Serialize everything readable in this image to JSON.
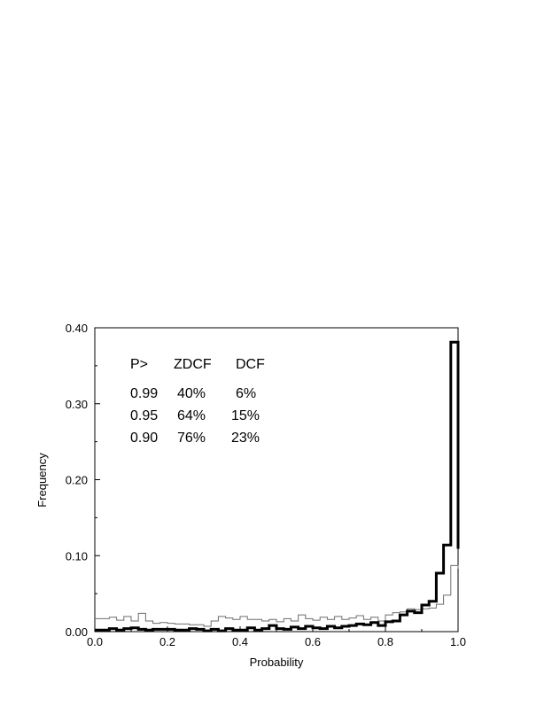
{
  "chart_data": {
    "type": "line",
    "xlabel": "Probability",
    "ylabel": "Frequency",
    "xlim": [
      0.0,
      1.0
    ],
    "ylim": [
      0.0,
      0.4
    ],
    "xticks": [
      "0.0",
      "0.2",
      "0.4",
      "0.6",
      "0.8",
      "1.0"
    ],
    "yticks": [
      "0.00",
      "0.10",
      "0.20",
      "0.30",
      "0.40"
    ],
    "bin_edges": [
      0.0,
      0.02,
      0.04,
      0.06,
      0.08,
      0.1,
      0.12,
      0.14,
      0.16,
      0.18,
      0.2,
      0.22,
      0.24,
      0.26,
      0.28,
      0.3,
      0.32,
      0.34,
      0.36,
      0.38,
      0.4,
      0.42,
      0.44,
      0.46,
      0.48,
      0.5,
      0.52,
      0.54,
      0.56,
      0.58,
      0.6,
      0.62,
      0.64,
      0.66,
      0.68,
      0.7,
      0.72,
      0.74,
      0.76,
      0.78,
      0.8,
      0.82,
      0.84,
      0.86,
      0.88,
      0.9,
      0.92,
      0.94,
      0.96,
      0.98,
      1.0
    ],
    "series": [
      {
        "style": "thick",
        "values": [
          0.002,
          0.002,
          0.004,
          0.002,
          0.004,
          0.005,
          0.003,
          0.002,
          0.003,
          0.003,
          0.003,
          0.002,
          0.002,
          0.004,
          0.003,
          0.001,
          0.003,
          0.001,
          0.004,
          0.002,
          0.002,
          0.005,
          0.002,
          0.004,
          0.008,
          0.004,
          0.003,
          0.006,
          0.004,
          0.007,
          0.005,
          0.004,
          0.007,
          0.005,
          0.007,
          0.008,
          0.01,
          0.009,
          0.012,
          0.008,
          0.013,
          0.014,
          0.022,
          0.027,
          0.025,
          0.035,
          0.04,
          0.077,
          0.114,
          0.381,
          0.109
        ]
      },
      {
        "style": "thin",
        "values": [
          0.017,
          0.017,
          0.019,
          0.015,
          0.02,
          0.014,
          0.024,
          0.014,
          0.011,
          0.012,
          0.011,
          0.01,
          0.01,
          0.009,
          0.009,
          0.007,
          0.014,
          0.02,
          0.018,
          0.016,
          0.02,
          0.016,
          0.016,
          0.014,
          0.016,
          0.013,
          0.017,
          0.014,
          0.022,
          0.017,
          0.015,
          0.019,
          0.016,
          0.02,
          0.016,
          0.018,
          0.021,
          0.016,
          0.019,
          0.014,
          0.022,
          0.025,
          0.026,
          0.03,
          0.029,
          0.03,
          0.031,
          0.036,
          0.048,
          0.087,
          0.083
        ]
      }
    ],
    "annotation_table": {
      "header": [
        "P>",
        "ZDCF",
        "DCF"
      ],
      "rows": [
        [
          "0.99",
          "40%",
          "6%"
        ],
        [
          "0.95",
          "64%",
          "15%"
        ],
        [
          "0.90",
          "76%",
          "23%"
        ]
      ]
    }
  }
}
